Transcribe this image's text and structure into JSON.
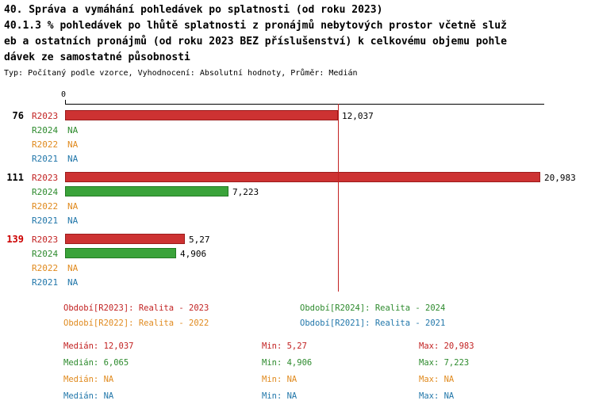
{
  "title": "40. Správa a vymáhání pohledávek po splatnosti (od roku 2023)",
  "subtitle_lines": [
    "40.1.3 % pohledávek po lhůtě splatnosti z pronájmů nebytových prostor včetně služ",
    "eb a ostatních pronájmů (od roku 2023 BEZ příslušenství) k celkovému objemu pohle",
    "dávek ze samostatné působnosti"
  ],
  "meta_line": "Typ: Počítaný podle vzorce, Vyhodnocení: Absolutní hodnoty, Průměr: Medián",
  "colors": {
    "red": "#c22222",
    "green": "#2e8b2e",
    "orange": "#e08a1e",
    "blue": "#2277aa",
    "axis": "#000000",
    "alert_group_id": "#cc0000"
  },
  "chart_data": {
    "type": "bar",
    "orientation": "horizontal",
    "axis_zero_label": "0",
    "xlim": [
      0,
      21.15
    ],
    "grid": false,
    "series_colors": {
      "R2023": {
        "fill": "#cd3232",
        "border": "#9c1c1c",
        "text": "#c22222"
      },
      "R2024": {
        "fill": "#3aa33a",
        "border": "#237a23",
        "text": "#2e8b2e"
      },
      "R2022": {
        "fill": "#e8982f",
        "border": "#b56f10",
        "text": "#e08a1e"
      },
      "R2021": {
        "fill": "#3c8dbc",
        "border": "#1f6391",
        "text": "#2277aa"
      }
    },
    "groups": [
      {
        "id": "76",
        "id_color": "#000000",
        "rows": [
          {
            "series": "R2023",
            "value": 12.037,
            "label": "12,037"
          },
          {
            "series": "R2024",
            "value": null,
            "label": "NA"
          },
          {
            "series": "R2022",
            "value": null,
            "label": "NA"
          },
          {
            "series": "R2021",
            "value": null,
            "label": "NA"
          }
        ]
      },
      {
        "id": "111",
        "id_color": "#000000",
        "rows": [
          {
            "series": "R2023",
            "value": 20.983,
            "label": "20,983"
          },
          {
            "series": "R2024",
            "value": 7.223,
            "label": "7,223"
          },
          {
            "series": "R2022",
            "value": null,
            "label": "NA"
          },
          {
            "series": "R2021",
            "value": null,
            "label": "NA"
          }
        ]
      },
      {
        "id": "139",
        "id_color": "#cc0000",
        "rows": [
          {
            "series": "R2023",
            "value": 5.27,
            "label": "5,27"
          },
          {
            "series": "R2024",
            "value": 4.906,
            "label": "4,906"
          },
          {
            "series": "R2022",
            "value": null,
            "label": "NA"
          },
          {
            "series": "R2021",
            "value": null,
            "label": "NA"
          }
        ]
      }
    ],
    "median_lines": [
      {
        "series": "R2023",
        "value": 12.037,
        "color": "#c22222"
      }
    ],
    "stats": {
      "R2023": {
        "median": 12.037,
        "min": 5.27,
        "max": 20.983
      },
      "R2024": {
        "median": 6.065,
        "min": 4.906,
        "max": 7.223
      },
      "R2022": {
        "median": null,
        "min": null,
        "max": null
      },
      "R2021": {
        "median": null,
        "min": null,
        "max": null
      }
    }
  },
  "legend": [
    {
      "text": "Období[R2023]: Realita - 2023",
      "color": "#c22222"
    },
    {
      "text": "Období[R2024]: Realita - 2024",
      "color": "#2e8b2e"
    },
    {
      "text": "Období[R2022]: Realita - 2022",
      "color": "#e08a1e"
    },
    {
      "text": "Období[R2021]: Realita - 2021",
      "color": "#2277aa"
    }
  ],
  "stats_rows": [
    {
      "median": "Medián: 12,037",
      "min": "Min: 5,27",
      "max": "Max: 20,983",
      "color": "#c22222"
    },
    {
      "median": "Medián: 6,065",
      "min": "Min: 4,906",
      "max": "Max: 7,223",
      "color": "#2e8b2e"
    },
    {
      "median": "Medián: NA",
      "min": "Min: NA",
      "max": "Max: NA",
      "color": "#e08a1e"
    },
    {
      "median": "Medián: NA",
      "min": "Min: NA",
      "max": "Max: NA",
      "color": "#2277aa"
    }
  ]
}
